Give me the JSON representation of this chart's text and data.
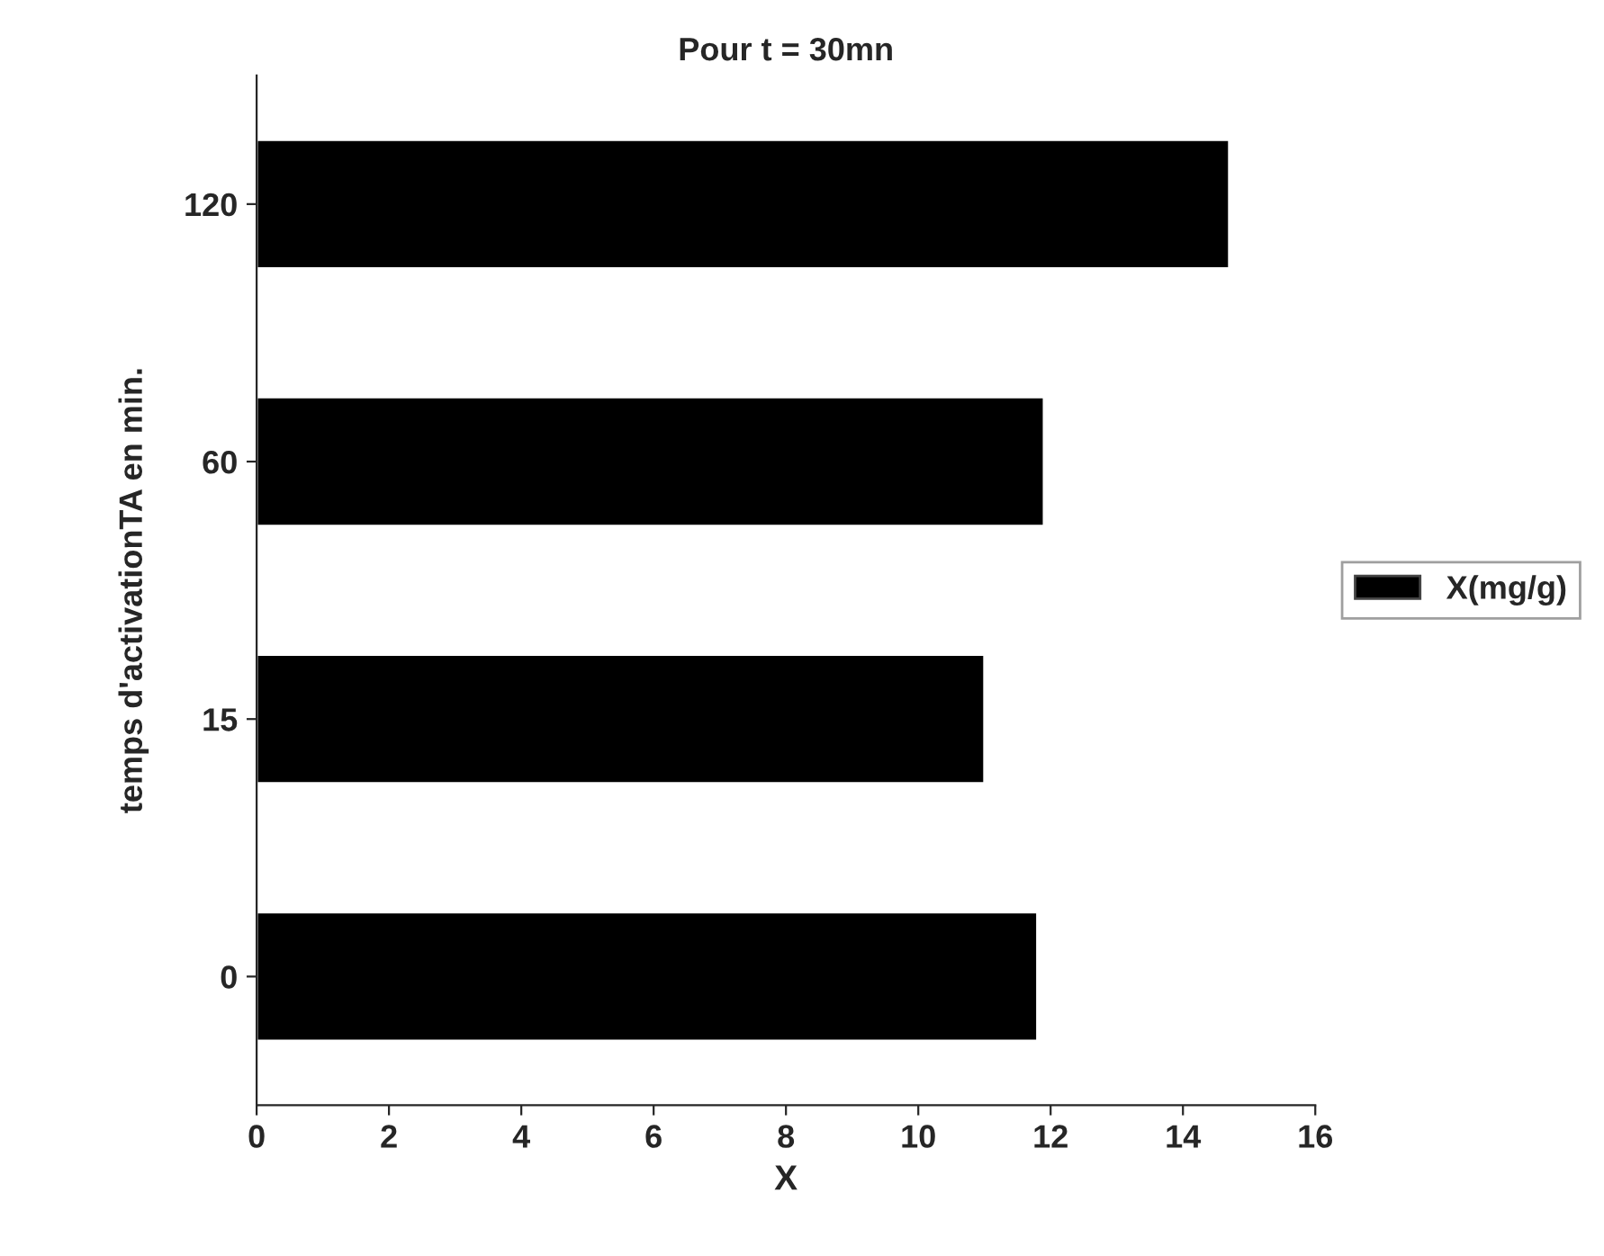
{
  "chart_data": {
    "type": "bar",
    "orientation": "horizontal",
    "title": "Pour t = 30mn",
    "xlabel": "X",
    "ylabel": "temps d'activationTA en min.",
    "categories": [
      "120",
      "60",
      "15",
      "0"
    ],
    "series": [
      {
        "name": "X(mg/g)",
        "color": "#000000",
        "values": [
          14.7,
          11.9,
          11.0,
          11.8
        ]
      }
    ],
    "xlim": [
      0,
      16
    ],
    "xticks": [
      0,
      2,
      4,
      6,
      8,
      10,
      12,
      14,
      16
    ],
    "grid": false,
    "legend": "right"
  }
}
